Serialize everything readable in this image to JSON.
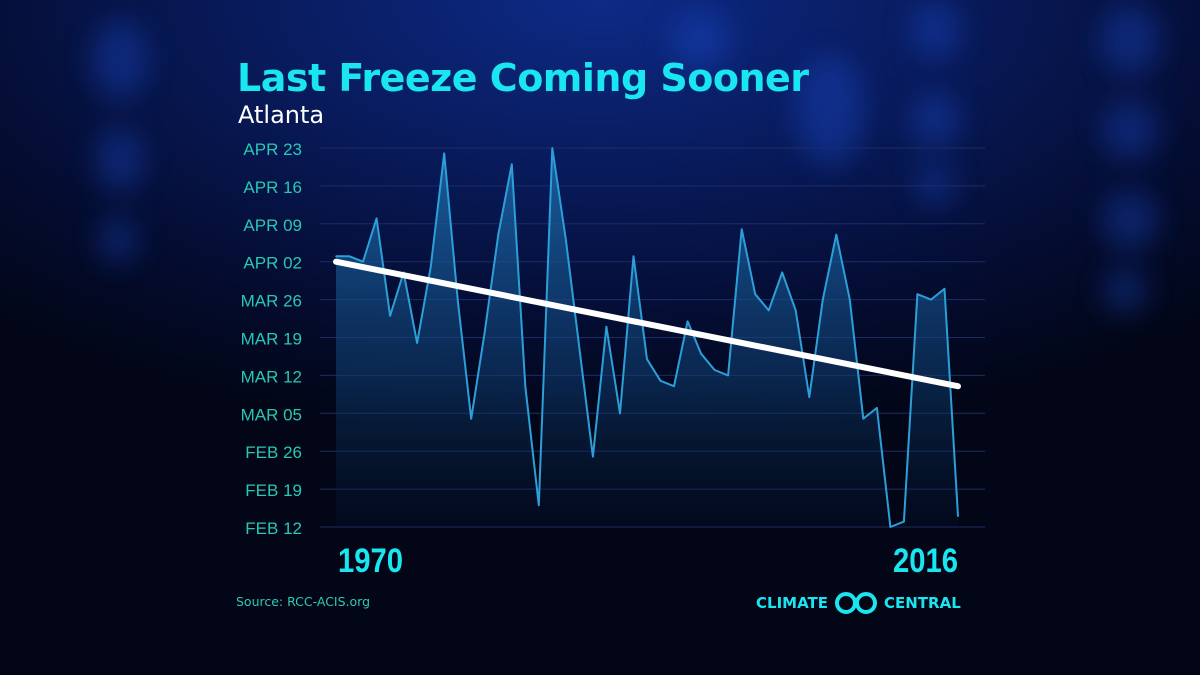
{
  "title": "Last Freeze Coming Sooner",
  "subtitle": "Atlanta",
  "source": "Source: RCC-ACIS.org",
  "logo": {
    "left": "CLIMATE",
    "right": "CENTRAL",
    "mark": "climate-central-logo-icon"
  },
  "colors": {
    "title": "#19e6f0",
    "series_line": "#2c9fd8",
    "trend_line": "#ffffff",
    "tick_label": "#28c8b4",
    "year_label": "#19e6f0",
    "gridline": "#1c2d66"
  },
  "chart_data": {
    "type": "line",
    "title": "Last Freeze Coming Sooner",
    "subtitle": "Atlanta",
    "xlabel": "",
    "ylabel": "",
    "x_start_label": "1970",
    "x_end_label": "2016",
    "xlim": [
      1970,
      2016
    ],
    "ylim": [
      "FEB 12",
      "APR 23"
    ],
    "y_ticks": [
      "FEB 12",
      "FEB 19",
      "FEB 26",
      "MAR 05",
      "MAR 12",
      "MAR 19",
      "MAR 26",
      "APR 02",
      "APR 09",
      "APR 16",
      "APR 23"
    ],
    "grid": true,
    "legend": "none",
    "x": [
      1970,
      1971,
      1972,
      1973,
      1974,
      1975,
      1976,
      1977,
      1978,
      1979,
      1980,
      1981,
      1982,
      1983,
      1984,
      1985,
      1986,
      1987,
      1988,
      1989,
      1990,
      1991,
      1992,
      1993,
      1994,
      1995,
      1996,
      1997,
      1998,
      1999,
      2000,
      2001,
      2002,
      2003,
      2004,
      2005,
      2006,
      2007,
      2008,
      2009,
      2010,
      2011,
      2012,
      2013,
      2014,
      2015,
      2016
    ],
    "series": [
      {
        "values": [
          "APR 03",
          "APR 03",
          "APR 02",
          "APR 10",
          "MAR 23",
          "MAR 31",
          "MAR 18",
          "APR 01",
          "APR 22",
          "MAR 26",
          "MAR 04",
          "MAR 20",
          "APR 07",
          "APR 20",
          "MAR 10",
          "FEB 16",
          "APR 23",
          "APR 06",
          "MAR 17",
          "FEB 25",
          "MAR 21",
          "MAR 05",
          "APR 03",
          "MAR 15",
          "MAR 11",
          "MAR 10",
          "MAR 22",
          "MAR 16",
          "MAR 13",
          "MAR 12",
          "APR 08",
          "MAR 27",
          "MAR 24",
          "MAR 31",
          "MAR 24",
          "MAR 08",
          "MAR 26",
          "APR 07",
          "MAR 26",
          "MAR 04",
          "MAR 06",
          "FEB 12",
          "FEB 13",
          "MAR 27",
          "MAR 26",
          "MAR 28",
          "FEB 14"
        ]
      }
    ],
    "trend": {
      "start": [
        "1970",
        "APR 02"
      ],
      "end": [
        "2016",
        "MAR 10"
      ]
    }
  }
}
